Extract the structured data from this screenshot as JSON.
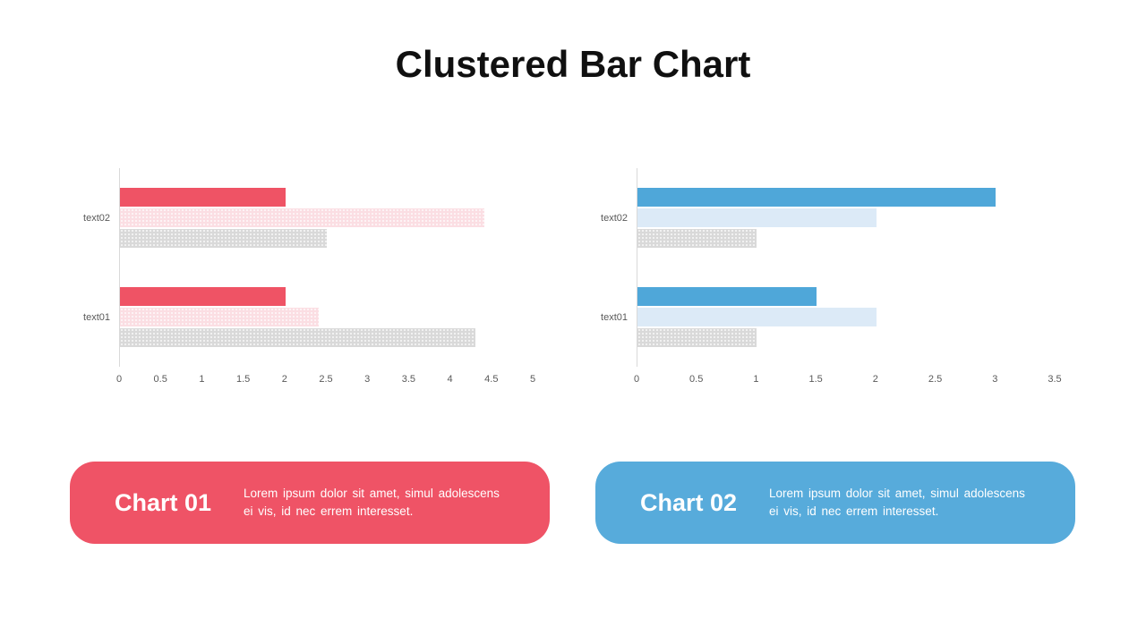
{
  "title": "Clustered Bar Chart",
  "chart_data": [
    {
      "type": "bar",
      "orientation": "horizontal",
      "name": "chart-01",
      "categories": [
        "text02",
        "text01"
      ],
      "series": [
        {
          "name": "series-red",
          "color": "#EF5365",
          "fill": "solid",
          "values": [
            2.0,
            2.0
          ]
        },
        {
          "name": "series-pink",
          "color": "#FBDEE3",
          "fill": "dotted",
          "values": [
            4.4,
            2.4
          ]
        },
        {
          "name": "series-gray",
          "color": "#D9D9D9",
          "fill": "dotted",
          "values": [
            2.5,
            4.3
          ]
        }
      ],
      "xlim": [
        0,
        5
      ],
      "ticks": [
        "0",
        "0.5",
        "1",
        "1.5",
        "2",
        "2.5",
        "3",
        "3.5",
        "4",
        "4.5",
        "5"
      ],
      "grid": false,
      "legend": false,
      "axis_color": "#d9d9d9",
      "label_color": "#595959"
    },
    {
      "type": "bar",
      "orientation": "horizontal",
      "name": "chart-02",
      "categories": [
        "text02",
        "text01"
      ],
      "series": [
        {
          "name": "series-blue",
          "color": "#4FA7D9",
          "fill": "solid",
          "values": [
            3.0,
            1.5
          ]
        },
        {
          "name": "series-lightblue",
          "color": "#DCEAF7",
          "fill": "solid",
          "values": [
            2.0,
            2.0
          ]
        },
        {
          "name": "series-gray",
          "color": "#D9D9D9",
          "fill": "dotted",
          "values": [
            1.0,
            1.0
          ]
        }
      ],
      "xlim": [
        0,
        3.5
      ],
      "ticks": [
        "0",
        "0.5",
        "1",
        "1.5",
        "2",
        "2.5",
        "3",
        "3.5"
      ],
      "grid": false,
      "legend": false,
      "axis_color": "#d9d9d9",
      "label_color": "#595959"
    }
  ],
  "cards": [
    {
      "title": "Chart 01",
      "description": "Lorem ipsum dolor sit amet, simul adolescens ei vis, id nec errem interesset.",
      "color": "#EF5366"
    },
    {
      "title": "Chart 02",
      "description": "Lorem ipsum dolor sit amet, simul adolescens ei vis, id nec errem interesset.",
      "color": "#57ABDB"
    }
  ]
}
